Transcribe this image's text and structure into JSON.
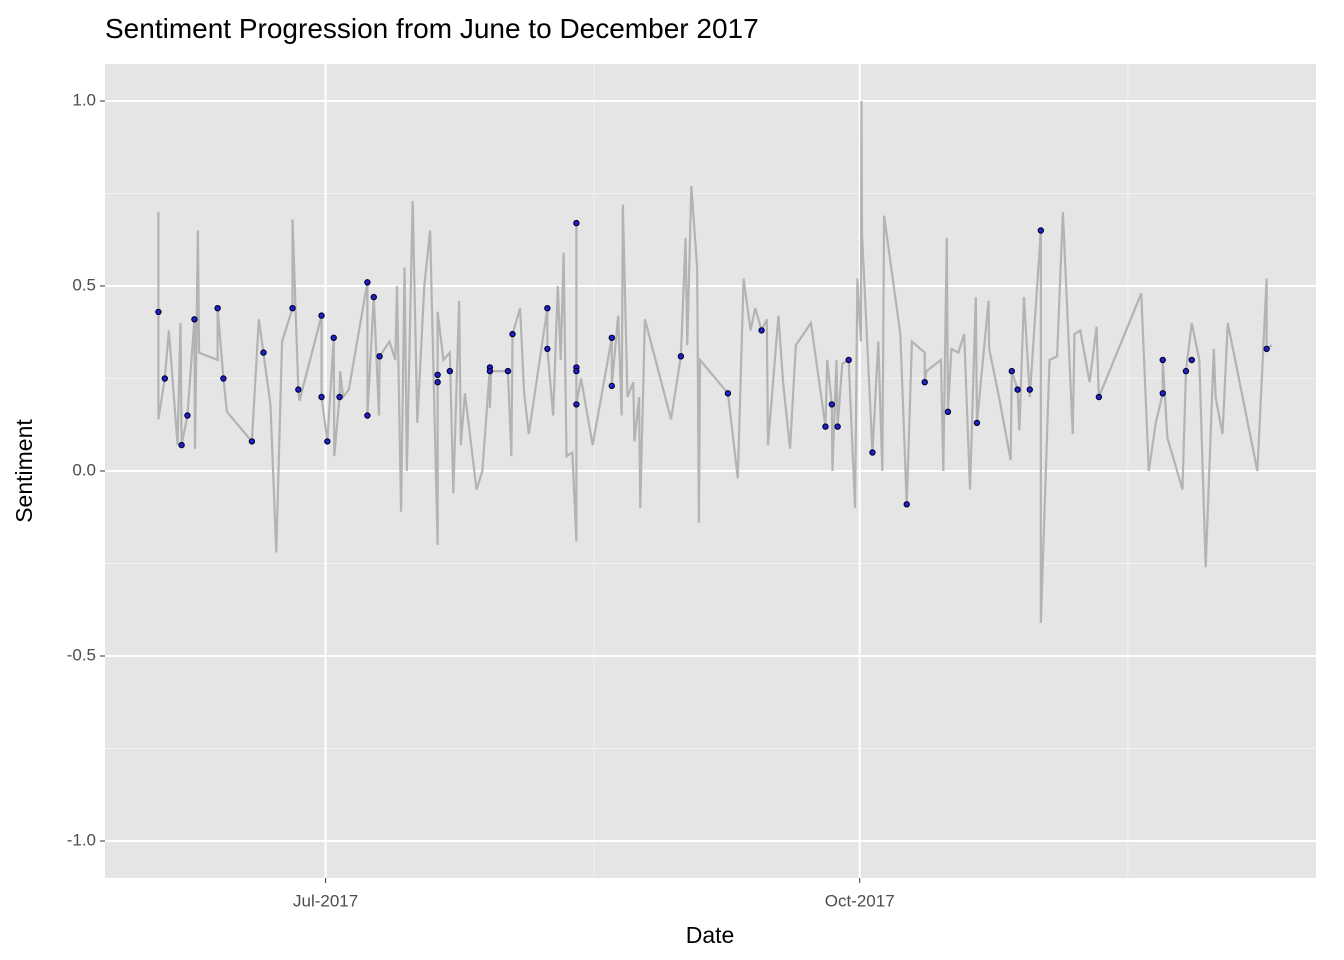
{
  "chart_data": {
    "type": "line",
    "title": "Sentiment Progression from June to December 2017",
    "xlabel": "Date",
    "ylabel": "Sentiment",
    "xlim": [
      144,
      352.6
    ],
    "ylim": [
      -1.1,
      1.1
    ],
    "xticks": [
      {
        "value": 182,
        "label": "Jul-2017"
      },
      {
        "value": 274,
        "label": "Oct-2017"
      }
    ],
    "xminorticks": [
      228.2,
      320.2
    ],
    "yticks": [
      {
        "value": -1,
        "label": "-1.0"
      },
      {
        "value": -0.5,
        "label": "-0.5"
      },
      {
        "value": 0,
        "label": "0.0"
      },
      0.5,
      {
        "value": 1,
        "label": "1.0"
      }
    ],
    "yminorticks": [
      -0.75,
      -0.25,
      0.25,
      0.75
    ],
    "grid": true,
    "series": [
      {
        "color": "#b3b3b3",
        "marker": "line",
        "x": [
          153.2,
          153.2,
          154.3,
          155,
          156.5,
          157,
          157.2,
          158.2,
          159.4,
          159.5,
          160,
          160.2,
          163.4,
          163.4,
          164.4,
          165,
          169.3,
          170.5,
          172.5,
          173.5,
          174.5,
          176.3,
          176.3,
          177.3,
          177.5,
          181.3,
          181.3,
          182.3,
          183.4,
          183.5,
          184.4,
          184.5,
          185,
          186,
          189.2,
          189.2,
          190.3,
          191.2,
          191.3,
          193,
          194,
          194.3,
          195,
          195.6,
          196,
          197,
          197.8,
          199,
          200,
          201.3,
          201.3,
          202.3,
          203.4,
          204,
          205,
          205.3,
          206,
          208,
          209,
          210.3,
          210.3,
          210.5,
          213.4,
          214,
          214.2,
          215.5,
          216.2,
          217,
          220.2,
          220.2,
          221.2,
          222,
          222.5,
          223,
          223.5,
          224.5,
          225.2,
          225.2,
          225.2,
          225.2,
          225.2,
          226,
          228,
          231.3,
          231.3,
          232.4,
          233,
          233.2,
          234,
          235,
          235.2,
          236,
          236.2,
          237,
          241.5,
          243.2,
          244,
          244.3,
          245,
          246,
          246.3,
          246.5,
          251.3,
          253,
          254,
          255.2,
          256,
          257.1,
          258,
          258.2,
          260,
          260.8,
          262,
          263,
          265.6,
          268.1,
          268.4,
          269.2,
          269.3,
          270,
          270.2,
          271,
          272.1,
          273.2,
          273.6,
          274.2,
          274.3,
          274.4,
          276.2,
          277.2,
          277.9,
          278.2,
          281,
          282.1,
          283,
          285.2,
          285.2,
          285.5,
          288,
          288.4,
          289,
          289.2,
          289.8,
          291,
          292,
          293,
          294,
          294.2,
          296.2,
          296.3,
          298,
          300,
          300.2,
          301.2,
          301.5,
          302.3,
          303.3,
          305.2,
          305.2,
          306.7,
          308,
          309,
          310.7,
          311,
          312,
          313.6,
          314.8,
          315.2,
          322.5,
          323.8,
          325,
          326.2,
          326.2,
          327,
          329.6,
          330.2,
          331.2,
          332.5,
          333.6,
          335,
          335.3,
          336.5,
          337.4,
          342.5,
          344.1,
          344.1,
          345
        ],
        "values": [
          0.7,
          0.14,
          0.25,
          0.38,
          0.07,
          0.4,
          0.07,
          0.15,
          0.41,
          0.06,
          0.65,
          0.32,
          0.3,
          0.44,
          0.25,
          0.16,
          0.08,
          0.41,
          0.18,
          -0.22,
          0.35,
          0.44,
          0.68,
          0.22,
          0.19,
          0.42,
          0.2,
          0.08,
          0.36,
          0.04,
          0.2,
          0.27,
          0.2,
          0.22,
          0.51,
          0.15,
          0.47,
          0.15,
          0.31,
          0.35,
          0.3,
          0.5,
          -0.11,
          0.55,
          0.0,
          0.73,
          0.13,
          0.5,
          0.65,
          -0.2,
          0.43,
          0.3,
          0.32,
          -0.06,
          0.46,
          0.07,
          0.21,
          -0.05,
          0.0,
          0.28,
          0.17,
          0.27,
          0.27,
          0.04,
          0.37,
          0.44,
          0.21,
          0.1,
          0.44,
          0.33,
          0.15,
          0.5,
          0.3,
          0.59,
          0.04,
          0.05,
          -0.19,
          0.67,
          0.28,
          0.27,
          0.18,
          0.25,
          0.07,
          0.36,
          0.23,
          0.42,
          0.15,
          0.72,
          0.2,
          0.24,
          0.08,
          0.2,
          -0.1,
          0.41,
          0.14,
          0.31,
          0.63,
          0.34,
          0.77,
          0.55,
          -0.14,
          0.3,
          0.21,
          -0.02,
          0.52,
          0.38,
          0.44,
          0.38,
          0.41,
          0.07,
          0.42,
          0.24,
          0.06,
          0.34,
          0.4,
          0.12,
          0.3,
          0.18,
          0.0,
          0.3,
          0.12,
          0.29,
          0.3,
          -0.1,
          0.52,
          0.35,
          1.0,
          0.64,
          0.05,
          0.35,
          0.0,
          0.69,
          0.37,
          -0.09,
          0.35,
          0.32,
          0.24,
          0.27,
          0.3,
          0.0,
          0.63,
          0.16,
          0.33,
          0.32,
          0.37,
          -0.05,
          0.47,
          0.13,
          0.46,
          0.33,
          0.2,
          0.03,
          0.27,
          0.22,
          0.11,
          0.47,
          0.2,
          0.65,
          -0.41,
          0.3,
          0.31,
          0.7,
          0.1,
          0.37,
          0.38,
          0.24,
          0.39,
          0.2,
          0.48,
          0.0,
          0.13,
          0.21,
          0.3,
          0.09,
          -0.05,
          0.27,
          0.4,
          0.3,
          -0.26,
          0.33,
          0.2,
          0.1,
          0.4,
          0.0,
          0.52,
          0.33,
          0.34
        ]
      },
      {
        "color": "#2222cc",
        "marker": "point",
        "x": [
          153.2,
          154.3,
          157.2,
          158.2,
          159.4,
          163.4,
          164.4,
          169.3,
          171.3,
          176.3,
          177.3,
          181.3,
          181.3,
          182.3,
          183.4,
          184.4,
          189.2,
          189.2,
          190.3,
          191.3,
          201.3,
          201.3,
          203.4,
          210.3,
          210.3,
          213.4,
          214.2,
          220.2,
          220.2,
          225.2,
          225.2,
          225.2,
          225.2,
          231.3,
          231.3,
          243.2,
          251.3,
          257.1,
          268.1,
          269.2,
          270.2,
          272.1,
          276.2,
          282.1,
          285.2,
          289.2,
          294.2,
          300.2,
          301.2,
          303.3,
          305.2,
          315.2,
          326.2,
          326.2,
          330.2,
          331.2,
          344.1
        ],
        "values": [
          0.43,
          0.25,
          0.07,
          0.15,
          0.41,
          0.44,
          0.25,
          0.08,
          0.32,
          0.44,
          0.22,
          0.42,
          0.2,
          0.08,
          0.36,
          0.2,
          0.51,
          0.15,
          0.47,
          0.31,
          0.26,
          0.24,
          0.27,
          0.28,
          0.27,
          0.27,
          0.37,
          0.44,
          0.33,
          0.67,
          0.28,
          0.27,
          0.18,
          0.36,
          0.23,
          0.31,
          0.21,
          0.38,
          0.12,
          0.18,
          0.12,
          0.3,
          0.05,
          -0.09,
          0.24,
          0.16,
          0.13,
          0.27,
          0.22,
          0.22,
          0.65,
          0.2,
          0.3,
          0.21,
          0.27,
          0.3,
          0.33
        ]
      }
    ]
  }
}
